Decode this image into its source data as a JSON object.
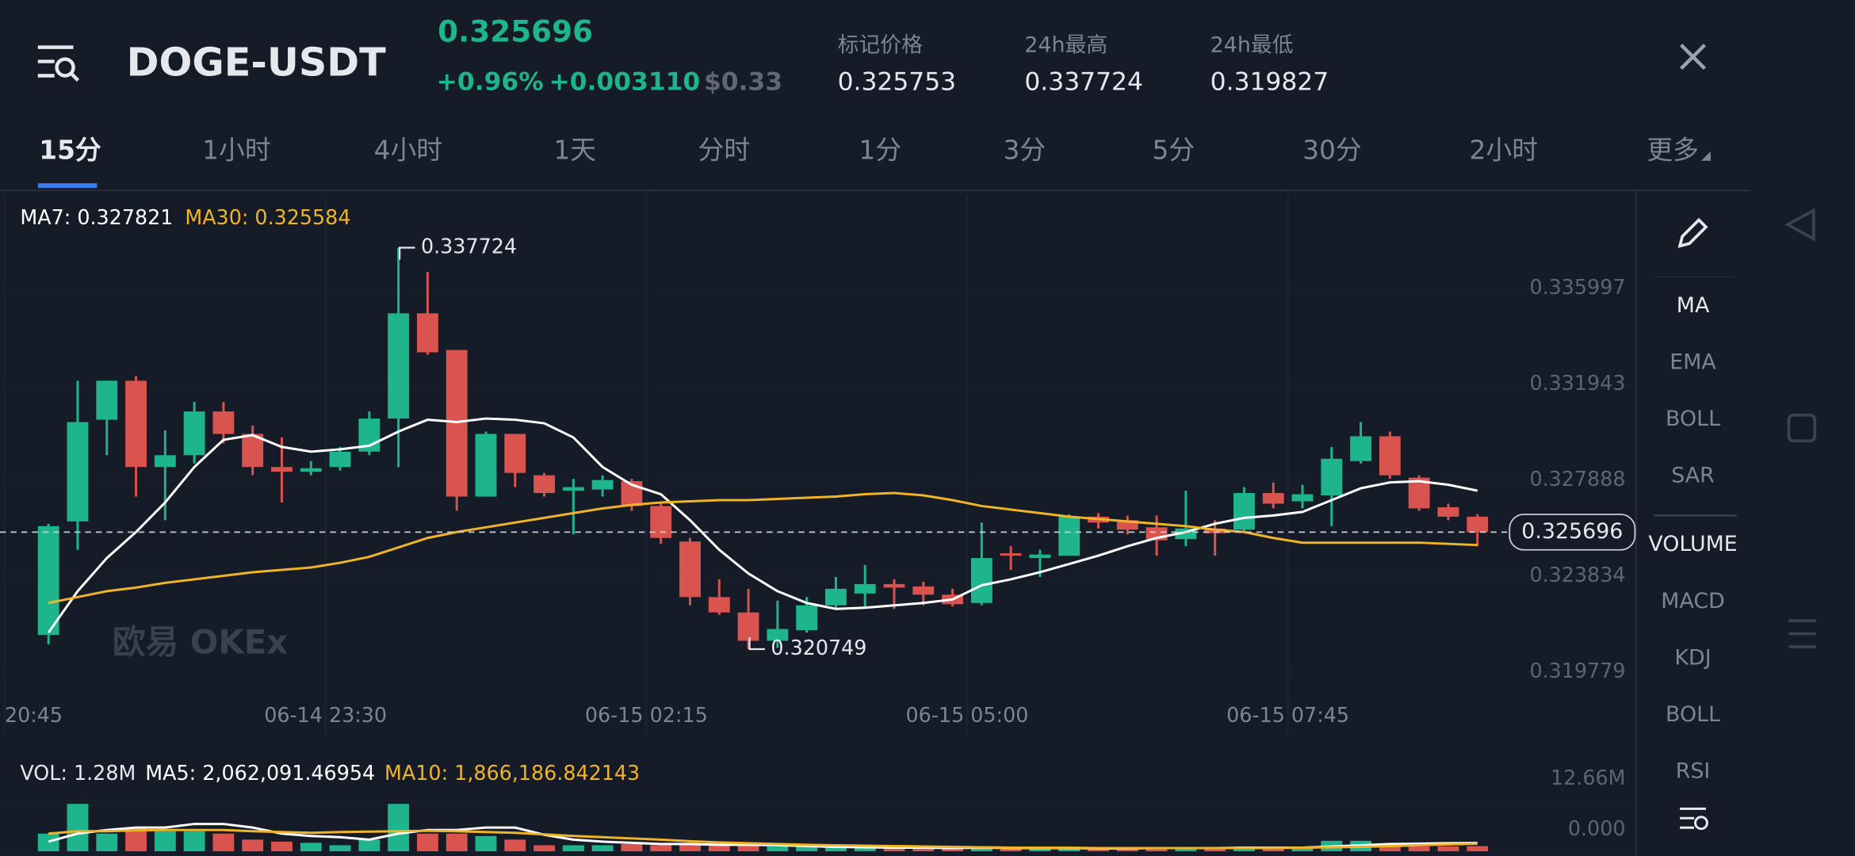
{
  "header": {
    "symbol": "DOGE-USDT",
    "price": "0.325696",
    "change_pct": "+0.96%",
    "change_abs": "+0.003110",
    "usd_price": "$0.33",
    "stats": [
      {
        "label": "标记价格",
        "value": "0.325753"
      },
      {
        "label": "24h最高",
        "value": "0.337724"
      },
      {
        "label": "24h最低",
        "value": "0.319827"
      }
    ]
  },
  "tabs": [
    "15分",
    "1小时",
    "4小时",
    "1天",
    "分时",
    "1分",
    "3分",
    "5分",
    "30分",
    "2小时",
    "更多"
  ],
  "sidebar": [
    "MA",
    "EMA",
    "BOLL",
    "SAR",
    "VOLUME",
    "MACD",
    "KDJ",
    "BOLL",
    "RSI"
  ],
  "chart_data": [
    {
      "type": "candlestick",
      "watermark": "欧易 OKEx",
      "up_color": "#1fb58c",
      "down_color": "#d9534f",
      "ylim": [
        0.3187,
        0.33995
      ],
      "yticks": [
        0.335997,
        0.331943,
        0.327888,
        0.323834,
        0.319779
      ],
      "time_labels": [
        "20:45",
        "06-14 23:30",
        "06-15 02:15",
        "06-15 05:00",
        "06-15 07:45"
      ],
      "current_price": 0.325696,
      "open": [
        0.32135,
        0.32615,
        0.33045,
        0.3321,
        0.32845,
        0.32895,
        0.3308,
        0.32985,
        0.32845,
        0.32825,
        0.32845,
        0.3291,
        0.3305,
        0.33495,
        0.3334,
        0.3272,
        0.32985,
        0.3281,
        0.32745,
        0.3275,
        0.32785,
        0.3268,
        0.3253,
        0.32295,
        0.3223,
        0.3211,
        0.32155,
        0.3226,
        0.3231,
        0.3235,
        0.3234,
        0.32305,
        0.3227,
        0.3248,
        0.3246,
        0.3247,
        0.32635,
        0.3262,
        0.3259,
        0.3254,
        0.32585,
        0.3258,
        0.32735,
        0.327,
        0.32725,
        0.3287,
        0.32975,
        0.328,
        0.32675,
        0.32635
      ],
      "high": [
        0.32605,
        0.3321,
        0.3321,
        0.3323,
        0.33,
        0.3312,
        0.3312,
        0.3302,
        0.3297,
        0.3287,
        0.3293,
        0.3308,
        0.337724,
        0.3367,
        0.3334,
        0.32995,
        0.32985,
        0.3282,
        0.32795,
        0.3281,
        0.32795,
        0.32695,
        0.32545,
        0.3237,
        0.3233,
        0.3228,
        0.32295,
        0.3238,
        0.3243,
        0.3237,
        0.3236,
        0.3233,
        0.3261,
        0.3251,
        0.32495,
        0.32645,
        0.3265,
        0.3264,
        0.3264,
        0.32745,
        0.3262,
        0.3276,
        0.3278,
        0.3277,
        0.3293,
        0.33035,
        0.32995,
        0.3281,
        0.3269,
        0.32645
      ],
      "low": [
        0.32095,
        0.32495,
        0.32895,
        0.3272,
        0.3262,
        0.3286,
        0.32945,
        0.3281,
        0.32695,
        0.3281,
        0.3283,
        0.32895,
        0.32845,
        0.3332,
        0.3266,
        0.3272,
        0.3276,
        0.3272,
        0.3256,
        0.3272,
        0.3266,
        0.3252,
        0.3226,
        0.3222,
        0.320749,
        0.3208,
        0.32145,
        0.32245,
        0.32245,
        0.32245,
        0.3226,
        0.32255,
        0.3226,
        0.3241,
        0.3238,
        0.3247,
        0.32585,
        0.3256,
        0.3247,
        0.3251,
        0.3247,
        0.3257,
        0.3267,
        0.3267,
        0.32595,
        0.3286,
        0.32795,
        0.3266,
        0.3262,
        0.3251
      ],
      "close": [
        0.32595,
        0.33035,
        0.3321,
        0.32845,
        0.32895,
        0.3308,
        0.32985,
        0.32845,
        0.32825,
        0.3284,
        0.3291,
        0.3305,
        0.33495,
        0.3333,
        0.3272,
        0.32985,
        0.3282,
        0.32735,
        0.3276,
        0.3279,
        0.3268,
        0.32545,
        0.32295,
        0.3223,
        0.3211,
        0.3216,
        0.3226,
        0.3233,
        0.3235,
        0.32335,
        0.32305,
        0.32265,
        0.3246,
        0.3247,
        0.32475,
        0.32635,
        0.3261,
        0.3258,
        0.32535,
        0.32585,
        0.32565,
        0.32735,
        0.3269,
        0.3273,
        0.3288,
        0.32975,
        0.3281,
        0.3267,
        0.32635,
        0.325696
      ],
      "series": [
        {
          "name": "MA7: 0.327821",
          "color": "#ffffff",
          "values": [
            0.32145,
            0.3232,
            0.3246,
            0.3257,
            0.32695,
            0.32845,
            0.3296,
            0.3298,
            0.3293,
            0.3291,
            0.3292,
            0.32935,
            0.32995,
            0.33045,
            0.33035,
            0.3305,
            0.33045,
            0.3303,
            0.3297,
            0.32845,
            0.3277,
            0.3273,
            0.3262,
            0.32495,
            0.32395,
            0.3232,
            0.3227,
            0.32245,
            0.3225,
            0.3226,
            0.3227,
            0.32285,
            0.32345,
            0.3237,
            0.324,
            0.32435,
            0.3247,
            0.3251,
            0.32545,
            0.3257,
            0.32605,
            0.3263,
            0.3264,
            0.32655,
            0.32705,
            0.32755,
            0.3278,
            0.32785,
            0.3277,
            0.32745
          ]
        },
        {
          "name": "MA30: 0.325584",
          "color": "#f0b429",
          "values": [
            0.3227,
            0.32295,
            0.3232,
            0.32335,
            0.32355,
            0.3237,
            0.32385,
            0.324,
            0.3241,
            0.3242,
            0.3244,
            0.32465,
            0.32505,
            0.32545,
            0.3257,
            0.3259,
            0.3261,
            0.3263,
            0.3265,
            0.3267,
            0.32685,
            0.32695,
            0.327,
            0.32705,
            0.32705,
            0.3271,
            0.32715,
            0.3272,
            0.3273,
            0.32735,
            0.32725,
            0.32705,
            0.3268,
            0.32665,
            0.3265,
            0.32635,
            0.32625,
            0.32615,
            0.32605,
            0.32595,
            0.3258,
            0.3257,
            0.32545,
            0.32525,
            0.32525,
            0.32525,
            0.32525,
            0.32525,
            0.3252,
            0.32515
          ]
        }
      ]
    },
    {
      "type": "bar",
      "label": "VOL: 1.28M",
      "ylim": [
        0,
        12660000
      ],
      "yticks": [
        {
          "value": 12660000,
          "label": "12.66M"
        },
        {
          "value": 0,
          "label": "0.000"
        }
      ],
      "values": [
        4400000,
        11800000,
        4400000,
        5900000,
        5000000,
        5000000,
        4400000,
        2900000,
        2400000,
        2100000,
        1500000,
        2900000,
        11800000,
        4400000,
        4400000,
        3800000,
        2900000,
        1500000,
        1500000,
        1500000,
        1800000,
        1500000,
        2100000,
        1500000,
        1500000,
        1200000,
        1200000,
        900000,
        900000,
        900000,
        900000,
        900000,
        1200000,
        600000,
        600000,
        900000,
        600000,
        600000,
        900000,
        900000,
        600000,
        1200000,
        900000,
        900000,
        2600000,
        2600000,
        1500000,
        1200000,
        1200000,
        1280000
      ],
      "series": [
        {
          "name": "MA5: 2,062,091.46954",
          "color": "#ffffff",
          "values": [
            2400000,
            4400000,
            5300000,
            5900000,
            5900000,
            6800000,
            6800000,
            5900000,
            4400000,
            3800000,
            3500000,
            2900000,
            4400000,
            5300000,
            5300000,
            5900000,
            5900000,
            4100000,
            2900000,
            2400000,
            2100000,
            1800000,
            1800000,
            1600000,
            1600000,
            1500000,
            1300000,
            1100000,
            1000000,
            900000,
            900000,
            800000,
            900000,
            800000,
            800000,
            800000,
            700000,
            700000,
            800000,
            800000,
            800000,
            900000,
            900000,
            900000,
            1200000,
            1500000,
            1800000,
            1900000,
            2000000,
            2060000
          ]
        },
        {
          "name": "MA10: 1,866,186.842143",
          "color": "#f0b429",
          "values": [
            4400000,
            5000000,
            5000000,
            5200000,
            5300000,
            5300000,
            5300000,
            5000000,
            4800000,
            4600000,
            4800000,
            4900000,
            5000000,
            5100000,
            5000000,
            4800000,
            4600000,
            4200000,
            3800000,
            3500000,
            3200000,
            2900000,
            2500000,
            2200000,
            2000000,
            1800000,
            1600000,
            1500000,
            1400000,
            1300000,
            1200000,
            1100000,
            1000000,
            900000,
            900000,
            900000,
            800000,
            800000,
            800000,
            800000,
            800000,
            800000,
            800000,
            900000,
            1000000,
            1100000,
            1300000,
            1500000,
            1700000,
            1870000
          ]
        }
      ]
    }
  ]
}
